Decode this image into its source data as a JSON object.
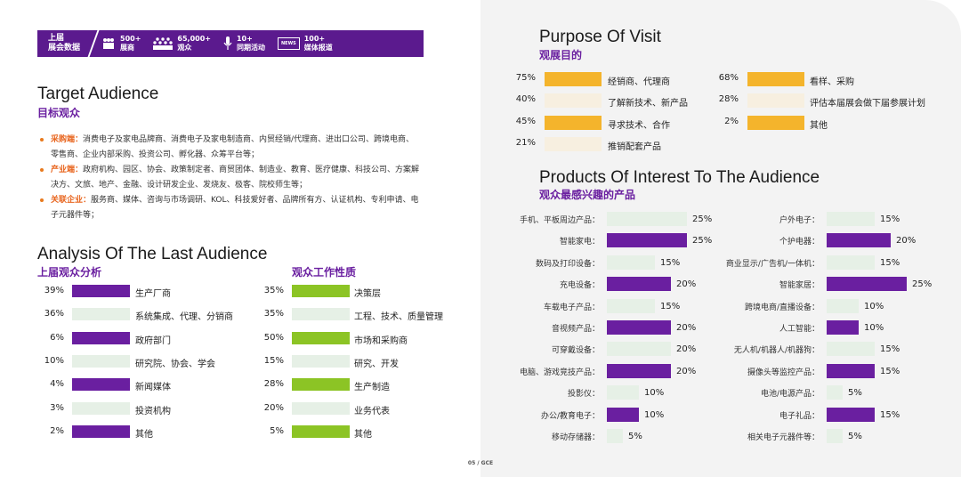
{
  "banner": {
    "label_line1": "上届",
    "label_line2": "展会数据",
    "stats": [
      {
        "icon": "people-icon",
        "value": "500+",
        "label": "展商"
      },
      {
        "icon": "crowd-icon",
        "value": "65,000+",
        "label": "观众"
      },
      {
        "icon": "microphone-icon",
        "value": "10+",
        "label": "同期活动"
      },
      {
        "icon": "news-icon",
        "value": "100+",
        "label": "媒体报道"
      }
    ],
    "news_badge": "NEWS"
  },
  "target": {
    "title_en": "Target Audience",
    "title_cn": "目标观众",
    "bullets": [
      {
        "key": "采购端：",
        "text": "消费电子及家电品牌商、消费电子及家电制造商、内贸经销/代理商、进出口公司、跨境电商、零售商、企业内部采购、投资公司、孵化器、众筹平台等；"
      },
      {
        "key": "产业端：",
        "text": "政府机构、园区、协会、政策制定者、商贸团体、制造业、教育、医疗健康、科技公司、方案解决方、文旅、地产、金融、设计研发企业、发烧友、极客、院校师生等；"
      },
      {
        "key": "关联企业：",
        "text": "服务商、媒体、咨询与市场调研、KOL、科技爱好者、品牌所有方、认证机构、专利申请、电子元器件等；"
      }
    ]
  },
  "analysis": {
    "title_en": "Analysis Of The Last Audience",
    "sub1_cn": "上届观众分析",
    "sub2_cn": "观众工作性质",
    "colors": {
      "purple": "#6a1fa0",
      "light": "#e6f0e6",
      "green": "#8cc425"
    },
    "audience": [
      {
        "pct": "39%",
        "label": "生产厂商",
        "value": 39,
        "dark": true
      },
      {
        "pct": "36%",
        "label": "系统集成、代理、分销商",
        "value": 36,
        "dark": false
      },
      {
        "pct": "6%",
        "label": "政府部门",
        "value": 6,
        "dark": true
      },
      {
        "pct": "10%",
        "label": "研究院、协会、学会",
        "value": 10,
        "dark": false
      },
      {
        "pct": "4%",
        "label": "新闻媒体",
        "value": 4,
        "dark": true
      },
      {
        "pct": "3%",
        "label": "投资机构",
        "value": 3,
        "dark": false
      },
      {
        "pct": "2%",
        "label": "其他",
        "value": 2,
        "dark": true
      }
    ],
    "work": [
      {
        "pct": "35%",
        "label": "决策层",
        "value": 35,
        "dark": true
      },
      {
        "pct": "35%",
        "label": "工程、技术、质量管理",
        "value": 35,
        "dark": false
      },
      {
        "pct": "50%",
        "label": "市场和采购商",
        "value": 50,
        "dark": true
      },
      {
        "pct": "15%",
        "label": "研究、开发",
        "value": 15,
        "dark": false
      },
      {
        "pct": "28%",
        "label": "生产制造",
        "value": 28,
        "dark": true
      },
      {
        "pct": "20%",
        "label": "业务代表",
        "value": 20,
        "dark": false
      },
      {
        "pct": "5%",
        "label": "其他",
        "value": 5,
        "dark": true
      }
    ]
  },
  "purpose": {
    "title_en": "Purpose Of Visit",
    "title_cn": "观展目的",
    "colors": {
      "orange": "#f4b42c",
      "light": "#f7efe0"
    },
    "left": [
      {
        "pct": "75%",
        "label": "经销商、代理商",
        "value": 75,
        "dark": true
      },
      {
        "pct": "40%",
        "label": "了解新技术、新产品",
        "value": 40,
        "dark": false
      },
      {
        "pct": "45%",
        "label": "寻求技术、合作",
        "value": 45,
        "dark": true
      },
      {
        "pct": "21%",
        "label": "推销配套产品",
        "value": 21,
        "dark": false
      }
    ],
    "right": [
      {
        "pct": "68%",
        "label": "看样、采购",
        "value": 68,
        "dark": true
      },
      {
        "pct": "28%",
        "label": "评估本届展会做下届参展计划",
        "value": 28,
        "dark": false
      },
      {
        "pct": "2%",
        "label": "其他",
        "value": 2,
        "dark": true
      }
    ]
  },
  "products": {
    "title_en": "Products Of Interest To The Audience",
    "title_cn": "观众最感兴趣的产品",
    "colors": {
      "purple": "#6a1fa0",
      "light": "#e6f0e6"
    },
    "left": [
      {
        "label": "手机、平板周边产品：",
        "pct": "25%",
        "value": 25,
        "dark": false
      },
      {
        "label": "智能家电：",
        "pct": "25%",
        "value": 25,
        "dark": true
      },
      {
        "label": "数码及打印设备：",
        "pct": "15%",
        "value": 15,
        "dark": false
      },
      {
        "label": "充电设备：",
        "pct": "20%",
        "value": 20,
        "dark": true
      },
      {
        "label": "车载电子产品：",
        "pct": "15%",
        "value": 15,
        "dark": false
      },
      {
        "label": "音视频产品：",
        "pct": "20%",
        "value": 20,
        "dark": true
      },
      {
        "label": "可穿戴设备：",
        "pct": "20%",
        "value": 20,
        "dark": false
      },
      {
        "label": "电脑、游戏竞技产品：",
        "pct": "20%",
        "value": 20,
        "dark": true
      },
      {
        "label": "投影仪：",
        "pct": "10%",
        "value": 10,
        "dark": false
      },
      {
        "label": "办公/教育电子：",
        "pct": "10%",
        "value": 10,
        "dark": true
      },
      {
        "label": "移动存储器：",
        "pct": "5%",
        "value": 5,
        "dark": false
      }
    ],
    "right": [
      {
        "label": "户外电子：",
        "pct": "15%",
        "value": 15,
        "dark": false
      },
      {
        "label": "个护电器：",
        "pct": "20%",
        "value": 20,
        "dark": true
      },
      {
        "label": "商业显示/广告机/一体机：",
        "pct": "15%",
        "value": 15,
        "dark": false
      },
      {
        "label": "智能家居：",
        "pct": "25%",
        "value": 25,
        "dark": true
      },
      {
        "label": "跨境电商/直播设备：",
        "pct": "10%",
        "value": 10,
        "dark": false
      },
      {
        "label": "人工智能：",
        "pct": "10%",
        "value": 10,
        "dark": true
      },
      {
        "label": "无人机/机器人/机器狗：",
        "pct": "15%",
        "value": 15,
        "dark": false
      },
      {
        "label": "摄像头等监控产品：",
        "pct": "15%",
        "value": 15,
        "dark": true
      },
      {
        "label": "电池/电源产品：",
        "pct": "5%",
        "value": 5,
        "dark": false
      },
      {
        "label": "电子礼品：",
        "pct": "15%",
        "value": 15,
        "dark": true
      },
      {
        "label": "相关电子元器件等：",
        "pct": "5%",
        "value": 5,
        "dark": false
      }
    ]
  },
  "footer": "05 / GCE"
}
